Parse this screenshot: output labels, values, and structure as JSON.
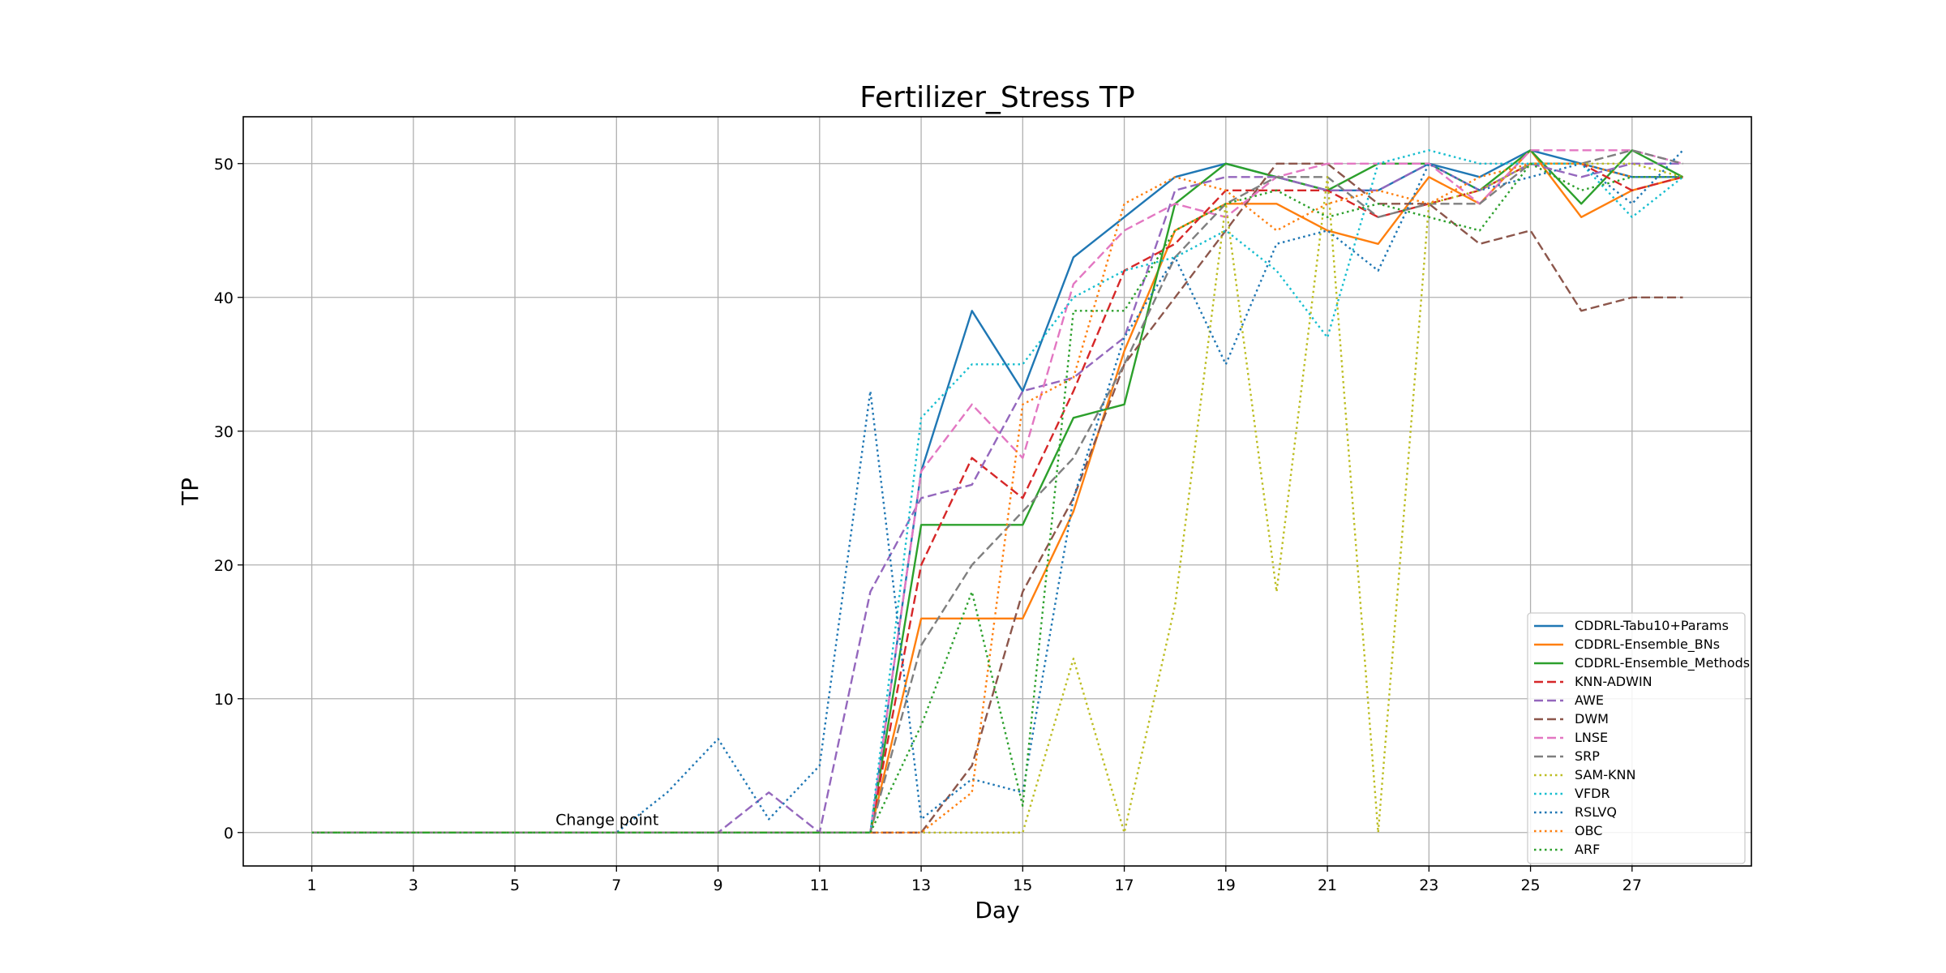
{
  "chart_data": {
    "type": "line",
    "title": "Fertilizer_Stress TP",
    "xlabel": "Day",
    "ylabel": "TP",
    "xlim": [
      -0.35,
      29.35
    ],
    "ylim": [
      -2.5,
      53.5
    ],
    "xticks": [
      1,
      3,
      5,
      7,
      9,
      11,
      13,
      15,
      17,
      19,
      21,
      23,
      25,
      27
    ],
    "yticks": [
      0,
      10,
      20,
      30,
      40,
      50
    ],
    "grid": true,
    "legend_position": "lower-right",
    "annotations": [
      {
        "text": "Change point",
        "x": 5.8,
        "y": 0.2
      }
    ],
    "x": [
      1,
      2,
      3,
      4,
      5,
      6,
      7,
      8,
      9,
      10,
      11,
      12,
      13,
      14,
      15,
      16,
      17,
      18,
      19,
      20,
      21,
      22,
      23,
      24,
      25,
      26,
      27,
      28
    ],
    "series": [
      {
        "name": "CDDRL-Tabu10+Params",
        "color": "#1f77b4",
        "style": "solid",
        "values": [
          0,
          0,
          0,
          0,
          0,
          0,
          0,
          0,
          0,
          0,
          0,
          0,
          27,
          39,
          33,
          43,
          46,
          49,
          50,
          49,
          48,
          48,
          50,
          49,
          51,
          50,
          49,
          49
        ]
      },
      {
        "name": "CDDRL-Ensemble_BNs",
        "color": "#ff7f0e",
        "style": "solid",
        "values": [
          0,
          0,
          0,
          0,
          0,
          0,
          0,
          0,
          0,
          0,
          0,
          0,
          16,
          16,
          16,
          24,
          36,
          45,
          47,
          47,
          45,
          44,
          49,
          47,
          51,
          46,
          48,
          49
        ]
      },
      {
        "name": "CDDRL-Ensemble_Methods",
        "color": "#2ca02c",
        "style": "solid",
        "values": [
          0,
          0,
          0,
          0,
          0,
          0,
          0,
          0,
          0,
          0,
          0,
          0,
          23,
          23,
          23,
          31,
          32,
          47,
          50,
          49,
          48,
          50,
          50,
          48,
          51,
          47,
          51,
          49
        ]
      },
      {
        "name": "KNN-ADWIN",
        "color": "#d62728",
        "style": "dashed",
        "values": [
          0,
          0,
          0,
          0,
          0,
          0,
          0,
          0,
          0,
          0,
          0,
          0,
          20,
          28,
          25,
          33,
          42,
          44,
          48,
          48,
          48,
          46,
          47,
          48,
          50,
          50,
          48,
          49
        ]
      },
      {
        "name": "AWE",
        "color": "#9467bd",
        "style": "dashed",
        "values": [
          0,
          0,
          0,
          0,
          0,
          0,
          0,
          0,
          0,
          3,
          0,
          18,
          25,
          26,
          33,
          34,
          37,
          48,
          49,
          49,
          48,
          48,
          50,
          48,
          50,
          49,
          50,
          50
        ]
      },
      {
        "name": "DWM",
        "color": "#8c564b",
        "style": "dashed",
        "values": [
          0,
          0,
          0,
          0,
          0,
          0,
          0,
          0,
          0,
          0,
          0,
          0,
          0,
          5,
          18,
          25,
          35,
          40,
          45,
          50,
          50,
          47,
          47,
          44,
          45,
          39,
          40,
          40
        ]
      },
      {
        "name": "LNSE",
        "color": "#e377c2",
        "style": "dashed",
        "values": [
          0,
          0,
          0,
          0,
          0,
          0,
          0,
          0,
          0,
          0,
          0,
          0,
          27,
          32,
          28,
          41,
          45,
          47,
          46,
          49,
          50,
          50,
          50,
          47,
          51,
          51,
          51,
          50
        ]
      },
      {
        "name": "SRP",
        "color": "#7f7f7f",
        "style": "dashed",
        "values": [
          0,
          0,
          0,
          0,
          0,
          0,
          0,
          0,
          0,
          0,
          0,
          0,
          14,
          20,
          24,
          28,
          35,
          43,
          47,
          49,
          49,
          46,
          47,
          47,
          50,
          50,
          51,
          50
        ]
      },
      {
        "name": "SAM-KNN",
        "color": "#bcbd22",
        "style": "dotted",
        "values": [
          0,
          0,
          0,
          0,
          0,
          0,
          0,
          0,
          0,
          0,
          0,
          0,
          0,
          0,
          0,
          13,
          0,
          17,
          47,
          18,
          49,
          0,
          47,
          48,
          50,
          50,
          50,
          49
        ]
      },
      {
        "name": "VFDR",
        "color": "#17becf",
        "style": "dotted",
        "values": [
          0,
          0,
          0,
          0,
          0,
          0,
          0,
          0,
          0,
          0,
          0,
          0,
          31,
          35,
          35,
          40,
          42,
          43,
          45,
          42,
          37,
          50,
          51,
          50,
          50,
          50,
          46,
          49
        ]
      },
      {
        "name": "RSLVQ",
        "color": "#1f77b4",
        "style": "dotted",
        "values": [
          0,
          0,
          0,
          0,
          0,
          0,
          0,
          3,
          7,
          1,
          5,
          33,
          1,
          4,
          3,
          25,
          37,
          43,
          35,
          44,
          45,
          42,
          50,
          48,
          49,
          50,
          47,
          51
        ]
      },
      {
        "name": "OBC",
        "color": "#ff7f0e",
        "style": "dotted",
        "values": [
          0,
          0,
          0,
          0,
          0,
          0,
          0,
          0,
          0,
          0,
          0,
          0,
          0,
          3,
          32,
          34,
          47,
          49,
          48,
          45,
          47,
          48,
          47,
          49,
          50,
          50,
          49,
          49
        ]
      },
      {
        "name": "ARF",
        "color": "#2ca02c",
        "style": "dotted",
        "values": [
          0,
          0,
          0,
          0,
          0,
          0,
          0,
          0,
          0,
          0,
          0,
          0,
          8,
          18,
          2,
          39,
          39,
          45,
          47,
          48,
          46,
          47,
          46,
          45,
          50,
          48,
          49,
          49
        ]
      }
    ]
  }
}
